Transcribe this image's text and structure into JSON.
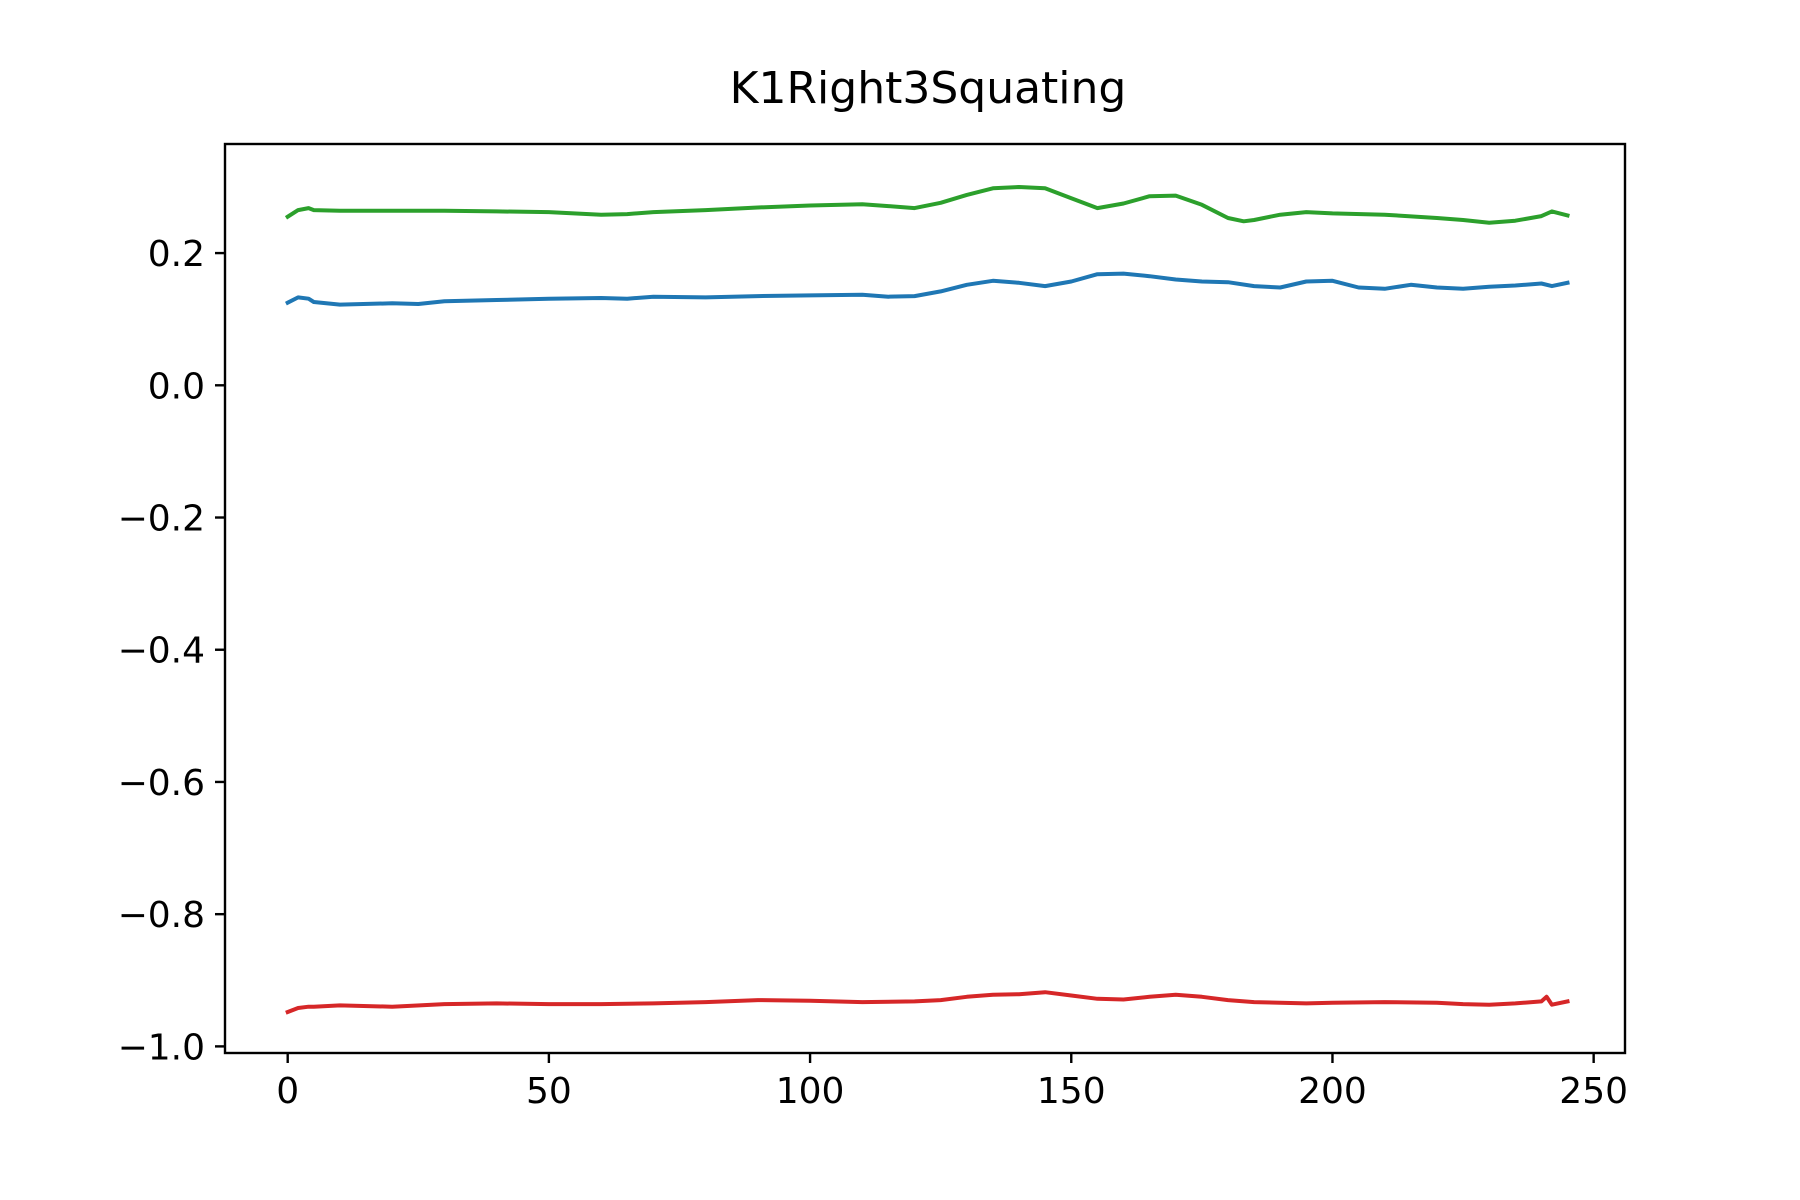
{
  "chart_data": {
    "type": "line",
    "title": "K1Right3Squating",
    "xlabel": "",
    "ylabel": "",
    "xlim": [
      -12,
      256
    ],
    "ylim": [
      -1.01,
      0.365
    ],
    "xticks": [
      0,
      50,
      100,
      150,
      200,
      250
    ],
    "xtick_labels": [
      "0",
      "50",
      "100",
      "150",
      "200",
      "250"
    ],
    "yticks": [
      -1.0,
      -0.8,
      -0.6,
      -0.4,
      -0.2,
      0.0,
      0.2
    ],
    "ytick_labels": [
      "−1.0",
      "−0.8",
      "−0.6",
      "−0.4",
      "−0.2",
      "0.0",
      "0.2"
    ],
    "grid": false,
    "series": [
      {
        "color": "#1f77b4",
        "x": [
          0,
          2,
          4,
          5,
          10,
          20,
          25,
          30,
          40,
          50,
          60,
          65,
          70,
          80,
          90,
          100,
          110,
          115,
          120,
          125,
          130,
          135,
          140,
          145,
          150,
          155,
          160,
          165,
          170,
          175,
          180,
          185,
          190,
          195,
          200,
          205,
          210,
          215,
          220,
          225,
          230,
          235,
          240,
          242,
          245
        ],
        "y": [
          0.125,
          0.133,
          0.131,
          0.126,
          0.122,
          0.124,
          0.123,
          0.127,
          0.129,
          0.131,
          0.132,
          0.131,
          0.134,
          0.133,
          0.135,
          0.136,
          0.137,
          0.134,
          0.135,
          0.142,
          0.152,
          0.158,
          0.155,
          0.15,
          0.157,
          0.168,
          0.169,
          0.165,
          0.16,
          0.157,
          0.156,
          0.15,
          0.148,
          0.157,
          0.158,
          0.148,
          0.146,
          0.152,
          0.148,
          0.146,
          0.149,
          0.151,
          0.154,
          0.15,
          0.155
        ]
      },
      {
        "color": "#2ca02c",
        "x": [
          0,
          2,
          4,
          5,
          10,
          20,
          30,
          40,
          50,
          60,
          65,
          70,
          80,
          90,
          100,
          110,
          115,
          120,
          125,
          130,
          135,
          140,
          145,
          150,
          155,
          160,
          165,
          170,
          175,
          180,
          183,
          185,
          190,
          195,
          200,
          210,
          220,
          225,
          230,
          235,
          240,
          242,
          245
        ],
        "y": [
          0.255,
          0.265,
          0.268,
          0.265,
          0.264,
          0.264,
          0.264,
          0.263,
          0.262,
          0.258,
          0.259,
          0.262,
          0.265,
          0.269,
          0.272,
          0.274,
          0.271,
          0.268,
          0.276,
          0.288,
          0.298,
          0.3,
          0.298,
          0.283,
          0.268,
          0.275,
          0.286,
          0.287,
          0.273,
          0.253,
          0.248,
          0.25,
          0.258,
          0.262,
          0.26,
          0.258,
          0.253,
          0.25,
          0.246,
          0.249,
          0.256,
          0.263,
          0.257
        ]
      },
      {
        "color": "#d62728",
        "x": [
          0,
          2,
          4,
          5,
          10,
          20,
          30,
          40,
          50,
          60,
          70,
          80,
          90,
          100,
          110,
          120,
          125,
          130,
          135,
          140,
          145,
          150,
          155,
          160,
          165,
          170,
          175,
          180,
          185,
          190,
          195,
          200,
          210,
          220,
          225,
          230,
          235,
          240,
          241,
          242,
          245
        ],
        "y": [
          -0.948,
          -0.942,
          -0.94,
          -0.94,
          -0.938,
          -0.94,
          -0.936,
          -0.935,
          -0.936,
          -0.936,
          -0.935,
          -0.933,
          -0.93,
          -0.931,
          -0.933,
          -0.932,
          -0.93,
          -0.925,
          -0.922,
          -0.921,
          -0.918,
          -0.923,
          -0.928,
          -0.929,
          -0.925,
          -0.922,
          -0.925,
          -0.93,
          -0.933,
          -0.934,
          -0.935,
          -0.934,
          -0.933,
          -0.934,
          -0.936,
          -0.937,
          -0.935,
          -0.932,
          -0.925,
          -0.937,
          -0.932
        ]
      }
    ]
  }
}
